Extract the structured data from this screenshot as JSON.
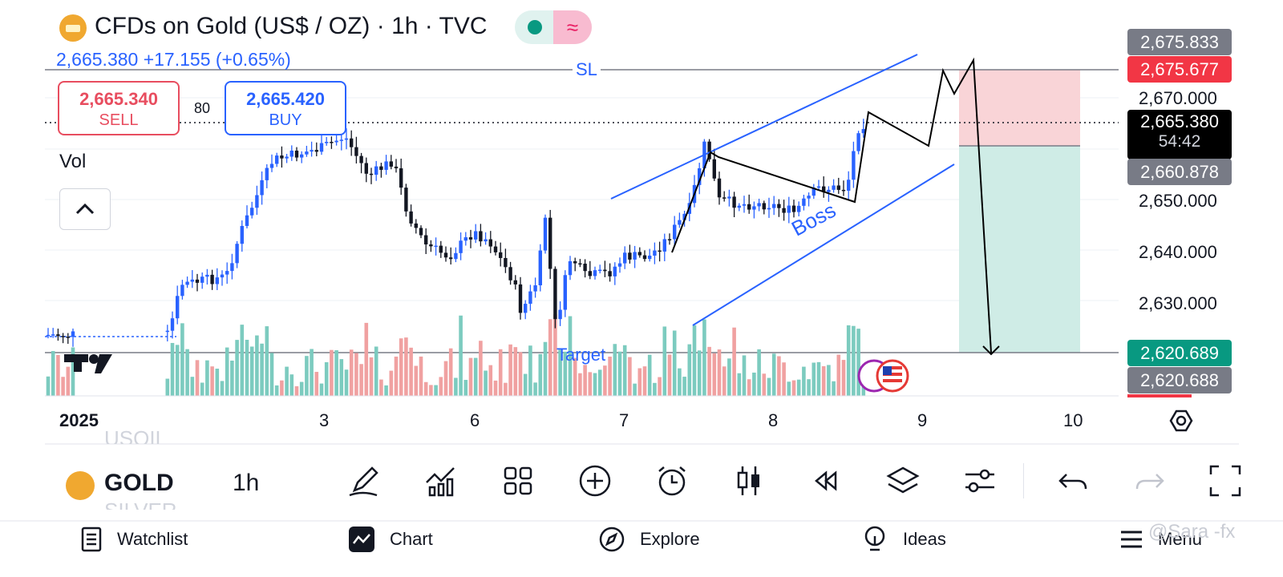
{
  "header": {
    "title": "CFDs on Gold (US$ / OZ) · 1h · TVC",
    "price_change": "2,665.380  +17.155 (+0.65%)"
  },
  "trade": {
    "sell_price": "2,665.340",
    "sell_label": "SELL",
    "buy_price": "2,665.420",
    "buy_label": "BUY",
    "spread": "80"
  },
  "indicator_label": "Vol",
  "annotations": {
    "sl": "SL",
    "target": "Target",
    "boss": "Boss"
  },
  "price_axis": {
    "ticks": [
      "2,670.000",
      "2,650.000",
      "2,640.000",
      "2,630.000"
    ],
    "tags": {
      "top_gray": "2,675.833",
      "red": "2,675.677",
      "current": "2,665.380",
      "countdown": "54:42",
      "entry_gray": "2,660.878",
      "green": "2,620.689",
      "bottom_gray": "2,620.688"
    }
  },
  "time_axis": {
    "year": "2025",
    "labels": [
      "3",
      "6",
      "7",
      "8",
      "9",
      "10"
    ]
  },
  "toolbar": {
    "symbol_prev": "USOIL",
    "symbol": "GOLD",
    "symbol_next": "SILVER",
    "timeframe": "1h",
    "tools": [
      "drawing-icon",
      "indicators-icon",
      "layout-icon",
      "add-icon",
      "alert-icon",
      "chart-type-icon",
      "replay-icon",
      "layers-icon",
      "settings-icon",
      "undo-icon",
      "redo-icon",
      "fullscreen-icon"
    ]
  },
  "nav": {
    "watchlist": "Watchlist",
    "chart": "Chart",
    "explore": "Explore",
    "ideas": "Ideas",
    "menu": "Menu"
  },
  "watermark": "@Sara -fx",
  "colors": {
    "up": "#26a69a",
    "up_candle": "#2962ff",
    "down": "#131722",
    "vol_up": "#7ccbbf",
    "vol_down": "#f0a1a1",
    "sl_zone": "#f9d4d7",
    "tp_zone": "#cfece6",
    "drawing": "#2962ff"
  }
}
